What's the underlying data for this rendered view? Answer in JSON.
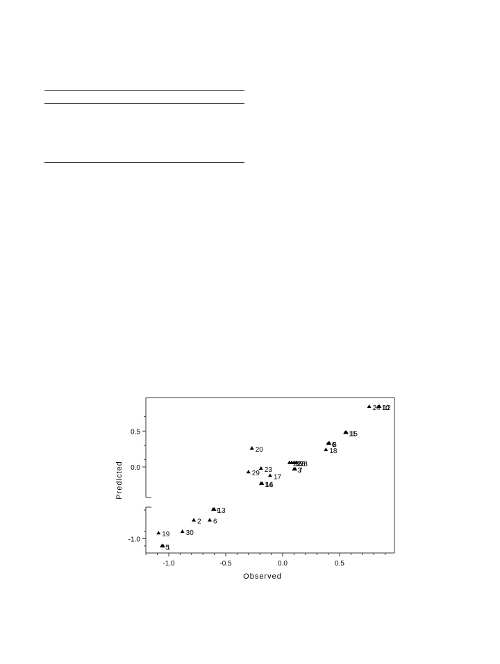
{
  "chart_data": {
    "type": "scatter",
    "xlabel": "Observed",
    "ylabel": "Predicted",
    "xlim": [
      -1.2,
      0.95
    ],
    "ylim": [
      -1.18,
      0.95
    ],
    "xticks": [
      -1.0,
      -0.5,
      0.0,
      0.5
    ],
    "xtick_labels": [
      "-1.0",
      "-0.5",
      "0.0",
      "0.5"
    ],
    "yticks": [
      -1.0,
      0.0,
      0.5
    ],
    "ytick_labels": [
      "-1.0",
      "0.0",
      "0.5"
    ],
    "y_axis_break": true,
    "grid": false,
    "marker": "triangle",
    "points": [
      {
        "label": "24",
        "x": 0.76,
        "y": 0.84
      },
      {
        "label": "10",
        "x": 0.84,
        "y": 0.84
      },
      {
        "label": "12",
        "x": 0.85,
        "y": 0.84
      },
      {
        "label": "11",
        "x": 0.55,
        "y": 0.48
      },
      {
        "label": "15",
        "x": 0.56,
        "y": 0.48
      },
      {
        "label": "6",
        "x": 0.4,
        "y": 0.33
      },
      {
        "label": "8",
        "x": 0.41,
        "y": 0.33
      },
      {
        "label": "18",
        "x": 0.38,
        "y": 0.24
      },
      {
        "label": "20",
        "x": -0.27,
        "y": 0.26
      },
      {
        "label": "22",
        "x": 0.06,
        "y": 0.06
      },
      {
        "label": "25",
        "x": 0.08,
        "y": 0.06
      },
      {
        "label": "26",
        "x": 0.1,
        "y": 0.06
      },
      {
        "label": "28",
        "x": 0.12,
        "y": 0.06
      },
      {
        "label": "3",
        "x": 0.1,
        "y": -0.03
      },
      {
        "label": "7",
        "x": 0.11,
        "y": -0.03
      },
      {
        "label": "23",
        "x": -0.19,
        "y": -0.02
      },
      {
        "label": "29",
        "x": -0.3,
        "y": -0.07
      },
      {
        "label": "17",
        "x": -0.11,
        "y": -0.12
      },
      {
        "label": "14",
        "x": -0.19,
        "y": -0.23
      },
      {
        "label": "16",
        "x": -0.18,
        "y": -0.23
      },
      {
        "label": "9",
        "x": -0.61,
        "y": -0.59
      },
      {
        "label": "13",
        "x": -0.6,
        "y": -0.59
      },
      {
        "label": "2",
        "x": -0.78,
        "y": -0.74
      },
      {
        "label": "6",
        "x": -0.64,
        "y": -0.74
      },
      {
        "label": "30",
        "x": -0.88,
        "y": -0.9
      },
      {
        "label": "19",
        "x": -1.09,
        "y": -0.92
      },
      {
        "label": "5",
        "x": -1.06,
        "y": -1.1
      },
      {
        "label": "1",
        "x": -1.05,
        "y": -1.1
      }
    ]
  }
}
